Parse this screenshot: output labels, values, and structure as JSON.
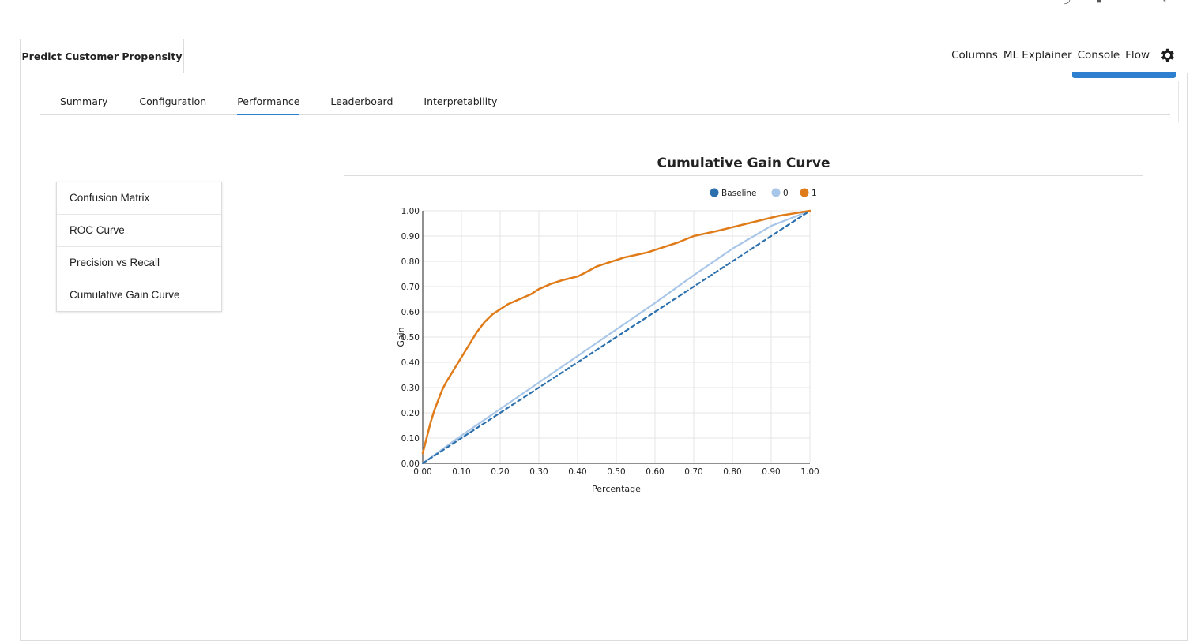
{
  "file_tab": {
    "title": "Predict Customer Propensity"
  },
  "top_nav": {
    "items": [
      "Columns",
      "ML Explainer",
      "Console",
      "Flow"
    ]
  },
  "tabs": [
    "Summary",
    "Configuration",
    "Performance",
    "Leaderboard",
    "Interpretability"
  ],
  "active_tab": "Performance",
  "side_menu": [
    "Confusion Matrix",
    "ROC Curve",
    "Precision vs Recall",
    "Cumulative Gain Curve"
  ],
  "colors": {
    "accent": "#2f7fd1",
    "baseline": "#2c6fad",
    "class0": "#a8c6e8",
    "class1": "#e07b1a"
  },
  "chart_data": {
    "type": "line",
    "title": "Cumulative Gain Curve",
    "xlabel": "Percentage",
    "ylabel": "Gain",
    "xlim": [
      0,
      1
    ],
    "ylim": [
      0,
      1
    ],
    "xticks": [
      "0.00",
      "0.10",
      "0.20",
      "0.30",
      "0.40",
      "0.50",
      "0.60",
      "0.70",
      "0.80",
      "0.90",
      "1.00"
    ],
    "yticks": [
      "0.00",
      "0.10",
      "0.20",
      "0.30",
      "0.40",
      "0.50",
      "0.60",
      "0.70",
      "0.80",
      "0.90",
      "1.00"
    ],
    "grid": true,
    "legend_position": "top-right",
    "series": [
      {
        "name": "Baseline",
        "style": "dashed",
        "x": [
          0,
          1
        ],
        "y": [
          0,
          1
        ]
      },
      {
        "name": "0",
        "x": [
          0,
          0.1,
          0.2,
          0.3,
          0.4,
          0.5,
          0.6,
          0.7,
          0.8,
          0.9,
          1.0
        ],
        "y": [
          0,
          0.11,
          0.215,
          0.32,
          0.425,
          0.53,
          0.635,
          0.745,
          0.85,
          0.94,
          1.0
        ]
      },
      {
        "name": "1",
        "x": [
          0,
          0.01,
          0.02,
          0.03,
          0.04,
          0.05,
          0.06,
          0.08,
          0.1,
          0.12,
          0.14,
          0.16,
          0.18,
          0.2,
          0.22,
          0.25,
          0.28,
          0.3,
          0.33,
          0.36,
          0.4,
          0.42,
          0.45,
          0.48,
          0.5,
          0.52,
          0.55,
          0.58,
          0.6,
          0.63,
          0.66,
          0.7,
          0.73,
          0.76,
          0.8,
          0.84,
          0.88,
          0.92,
          0.96,
          1.0
        ],
        "y": [
          0.04,
          0.1,
          0.16,
          0.21,
          0.25,
          0.29,
          0.32,
          0.37,
          0.42,
          0.47,
          0.52,
          0.56,
          0.59,
          0.61,
          0.63,
          0.65,
          0.67,
          0.69,
          0.71,
          0.725,
          0.74,
          0.755,
          0.78,
          0.795,
          0.805,
          0.815,
          0.825,
          0.835,
          0.845,
          0.86,
          0.875,
          0.9,
          0.91,
          0.92,
          0.935,
          0.95,
          0.965,
          0.98,
          0.99,
          1.0
        ]
      }
    ]
  }
}
